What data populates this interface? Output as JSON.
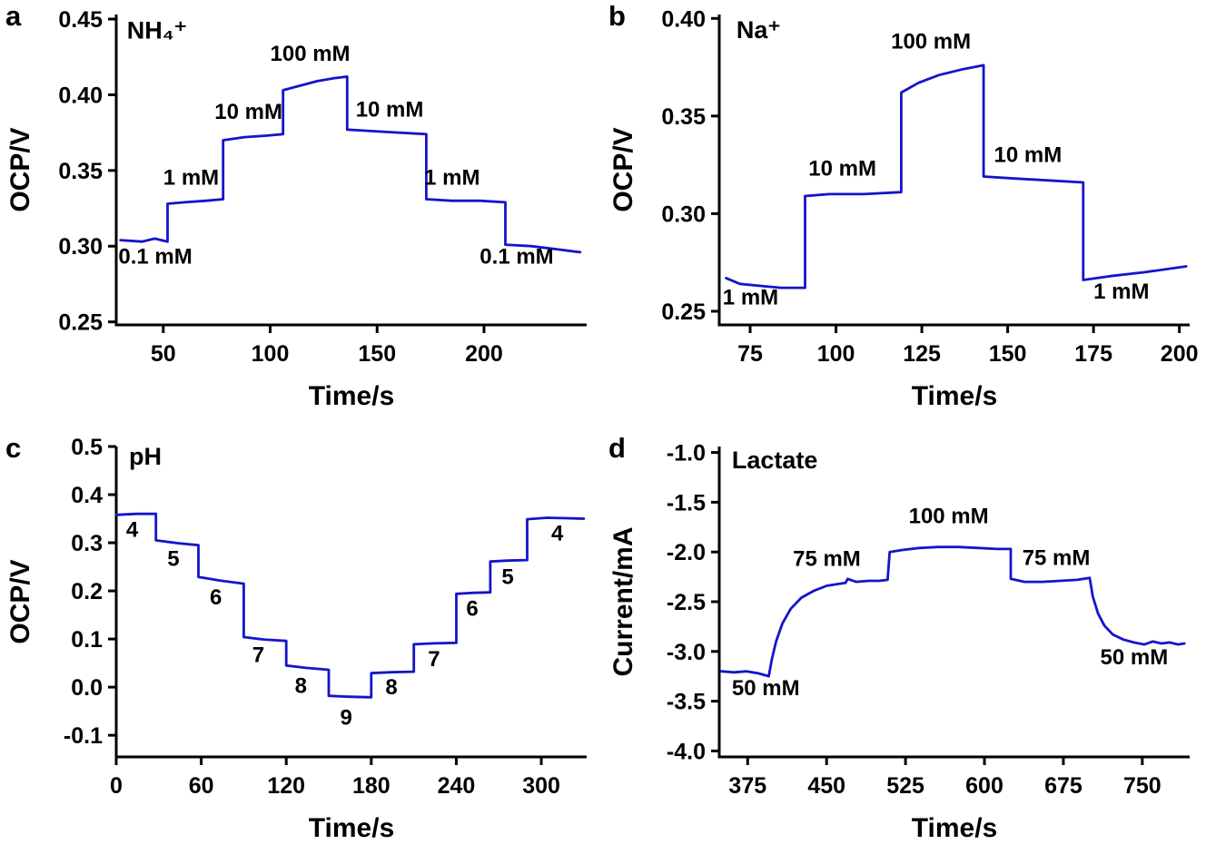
{
  "figure": {
    "background": "#ffffff",
    "line_color": "#1414cc",
    "panels": [
      {
        "letter": "a"
      },
      {
        "letter": "b"
      },
      {
        "letter": "c"
      },
      {
        "letter": "d"
      }
    ]
  },
  "chart_data": [
    {
      "panel": "a",
      "type": "line",
      "analyte": "NH₄⁺",
      "xlabel": "Time/s",
      "ylabel": "OCP/V",
      "xlim": [
        28,
        248
      ],
      "ylim": [
        0.248,
        0.453
      ],
      "line_color": "#1414cc",
      "xticks": [
        {
          "v": 50,
          "label": "50"
        },
        {
          "v": 100,
          "label": "100"
        },
        {
          "v": 150,
          "label": "150"
        },
        {
          "v": 200,
          "label": "200"
        }
      ],
      "yticks": [
        {
          "v": 0.25,
          "label": "0.25"
        },
        {
          "v": 0.3,
          "label": "0.30"
        },
        {
          "v": 0.35,
          "label": "0.35"
        },
        {
          "v": 0.4,
          "label": "0.40"
        },
        {
          "v": 0.45,
          "label": "0.45"
        }
      ],
      "trace": [
        [
          30,
          0.304
        ],
        [
          40,
          0.303
        ],
        [
          46,
          0.305
        ],
        [
          52,
          0.303
        ],
        [
          52,
          0.328
        ],
        [
          60,
          0.329
        ],
        [
          70,
          0.33
        ],
        [
          78,
          0.331
        ],
        [
          78,
          0.37
        ],
        [
          88,
          0.372
        ],
        [
          98,
          0.373
        ],
        [
          106,
          0.374
        ],
        [
          106,
          0.403
        ],
        [
          114,
          0.406
        ],
        [
          122,
          0.409
        ],
        [
          130,
          0.411
        ],
        [
          136,
          0.412
        ],
        [
          136,
          0.377
        ],
        [
          148,
          0.376
        ],
        [
          160,
          0.375
        ],
        [
          173,
          0.374
        ],
        [
          173,
          0.331
        ],
        [
          185,
          0.33
        ],
        [
          198,
          0.33
        ],
        [
          210,
          0.329
        ],
        [
          210,
          0.301
        ],
        [
          222,
          0.3
        ],
        [
          234,
          0.298
        ],
        [
          245,
          0.296
        ]
      ],
      "annotations": [
        {
          "x": 33,
          "y": 0.437,
          "text": "NH₄⁺",
          "cls": "analyte"
        },
        {
          "x": 29,
          "y": 0.2885,
          "text": "0.1 mM"
        },
        {
          "x": 50,
          "y": 0.3405,
          "text": "1 mM"
        },
        {
          "x": 74,
          "y": 0.384,
          "text": "10 mM"
        },
        {
          "x": 100,
          "y": 0.4225,
          "text": "100 mM"
        },
        {
          "x": 140,
          "y": 0.3855,
          "text": "10 mM"
        },
        {
          "x": 172,
          "y": 0.3405,
          "text": "1 mM"
        },
        {
          "x": 198,
          "y": 0.2885,
          "text": "0.1 mM"
        }
      ]
    },
    {
      "panel": "b",
      "type": "line",
      "analyte": "Na⁺",
      "xlabel": "Time/s",
      "ylabel": "OCP/V",
      "xlim": [
        66,
        203
      ],
      "ylim": [
        0.243,
        0.402
      ],
      "line_color": "#1414cc",
      "xticks": [
        {
          "v": 75,
          "label": "75"
        },
        {
          "v": 100,
          "label": "100"
        },
        {
          "v": 125,
          "label": "125"
        },
        {
          "v": 150,
          "label": "150"
        },
        {
          "v": 175,
          "label": "175"
        },
        {
          "v": 200,
          "label": "200"
        }
      ],
      "yticks": [
        {
          "v": 0.25,
          "label": "0.25"
        },
        {
          "v": 0.3,
          "label": "0.30"
        },
        {
          "v": 0.35,
          "label": "0.35"
        },
        {
          "v": 0.4,
          "label": "0.40"
        }
      ],
      "trace": [
        [
          68,
          0.267
        ],
        [
          72,
          0.264
        ],
        [
          78,
          0.263
        ],
        [
          84,
          0.262
        ],
        [
          91,
          0.262
        ],
        [
          91,
          0.309
        ],
        [
          98,
          0.31
        ],
        [
          108,
          0.31
        ],
        [
          119,
          0.311
        ],
        [
          119,
          0.362
        ],
        [
          124,
          0.367
        ],
        [
          130,
          0.371
        ],
        [
          137,
          0.374
        ],
        [
          143,
          0.376
        ],
        [
          143,
          0.319
        ],
        [
          152,
          0.318
        ],
        [
          162,
          0.317
        ],
        [
          172,
          0.316
        ],
        [
          172,
          0.266
        ],
        [
          180,
          0.268
        ],
        [
          190,
          0.27
        ],
        [
          202,
          0.273
        ]
      ],
      "annotations": [
        {
          "x": 71,
          "y": 0.39,
          "text": "Na⁺",
          "cls": "analyte"
        },
        {
          "x": 67,
          "y": 0.2535,
          "text": "1 mM"
        },
        {
          "x": 92,
          "y": 0.3195,
          "text": "10 mM"
        },
        {
          "x": 116,
          "y": 0.3845,
          "text": "100 mM"
        },
        {
          "x": 146,
          "y": 0.3265,
          "text": "10 mM"
        },
        {
          "x": 175,
          "y": 0.2565,
          "text": "1 mM"
        }
      ]
    },
    {
      "panel": "c",
      "type": "line",
      "analyte": "pH",
      "xlabel": "Time/s",
      "ylabel": "OCP/V",
      "xlim": [
        0,
        332
      ],
      "ylim": [
        -0.145,
        0.5
      ],
      "line_color": "#1414cc",
      "xticks": [
        {
          "v": 0,
          "label": "0"
        },
        {
          "v": 60,
          "label": "60"
        },
        {
          "v": 120,
          "label": "120"
        },
        {
          "v": 180,
          "label": "180"
        },
        {
          "v": 240,
          "label": "240"
        },
        {
          "v": 300,
          "label": "300"
        }
      ],
      "yticks": [
        {
          "v": -0.1,
          "label": "-0.1"
        },
        {
          "v": 0.0,
          "label": "0.0"
        },
        {
          "v": 0.1,
          "label": "0.1"
        },
        {
          "v": 0.2,
          "label": "0.2"
        },
        {
          "v": 0.3,
          "label": "0.3"
        },
        {
          "v": 0.4,
          "label": "0.4"
        },
        {
          "v": 0.5,
          "label": "0.5"
        }
      ],
      "trace": [
        [
          0,
          0.358
        ],
        [
          14,
          0.36
        ],
        [
          28,
          0.36
        ],
        [
          28,
          0.305
        ],
        [
          44,
          0.299
        ],
        [
          58,
          0.295
        ],
        [
          58,
          0.229
        ],
        [
          74,
          0.221
        ],
        [
          90,
          0.215
        ],
        [
          90,
          0.104
        ],
        [
          104,
          0.099
        ],
        [
          120,
          0.096
        ],
        [
          120,
          0.045
        ],
        [
          134,
          0.04
        ],
        [
          150,
          0.036
        ],
        [
          150,
          -0.018
        ],
        [
          164,
          -0.02
        ],
        [
          180,
          -0.021
        ],
        [
          180,
          0.029
        ],
        [
          194,
          0.031
        ],
        [
          210,
          0.032
        ],
        [
          210,
          0.089
        ],
        [
          224,
          0.091
        ],
        [
          240,
          0.092
        ],
        [
          240,
          0.194
        ],
        [
          252,
          0.196
        ],
        [
          264,
          0.197
        ],
        [
          264,
          0.261
        ],
        [
          276,
          0.263
        ],
        [
          290,
          0.264
        ],
        [
          290,
          0.349
        ],
        [
          304,
          0.352
        ],
        [
          318,
          0.351
        ],
        [
          330,
          0.35
        ]
      ],
      "annotations": [
        {
          "x": 9,
          "y": 0.462,
          "text": "pH",
          "cls": "analyte"
        },
        {
          "x": 7,
          "y": 0.312,
          "text": "4"
        },
        {
          "x": 36,
          "y": 0.252,
          "text": "5"
        },
        {
          "x": 66,
          "y": 0.172,
          "text": "6"
        },
        {
          "x": 96,
          "y": 0.052,
          "text": "7"
        },
        {
          "x": 126,
          "y": -0.012,
          "text": "8"
        },
        {
          "x": 158,
          "y": -0.078,
          "text": "9"
        },
        {
          "x": 190,
          "y": -0.015,
          "text": "8"
        },
        {
          "x": 220,
          "y": 0.044,
          "text": "7"
        },
        {
          "x": 247,
          "y": 0.148,
          "text": "6"
        },
        {
          "x": 272,
          "y": 0.214,
          "text": "5"
        },
        {
          "x": 307,
          "y": 0.305,
          "text": "4"
        }
      ]
    },
    {
      "panel": "d",
      "type": "line",
      "analyte": "Lactate",
      "xlabel": "Time/s",
      "ylabel": "Current/mA",
      "xlim": [
        348,
        795
      ],
      "ylim": [
        -4.06,
        -0.94
      ],
      "line_color": "#1414cc",
      "xticks": [
        {
          "v": 375,
          "label": "375"
        },
        {
          "v": 450,
          "label": "450"
        },
        {
          "v": 525,
          "label": "525"
        },
        {
          "v": 600,
          "label": "600"
        },
        {
          "v": 675,
          "label": "675"
        },
        {
          "v": 750,
          "label": "750"
        }
      ],
      "yticks": [
        {
          "v": -1.0,
          "label": "-1.0"
        },
        {
          "v": -1.5,
          "label": "-1.5"
        },
        {
          "v": -2.0,
          "label": "-2.0"
        },
        {
          "v": -2.5,
          "label": "-2.5"
        },
        {
          "v": -3.0,
          "label": "-3.0"
        },
        {
          "v": -3.5,
          "label": "-3.5"
        },
        {
          "v": -4.0,
          "label": "-4.0"
        }
      ],
      "trace": [
        [
          350,
          -3.2
        ],
        [
          362,
          -3.21
        ],
        [
          374,
          -3.2
        ],
        [
          385,
          -3.22
        ],
        [
          392,
          -3.24
        ],
        [
          395,
          -3.25
        ],
        [
          398,
          -3.08
        ],
        [
          402,
          -2.9
        ],
        [
          408,
          -2.72
        ],
        [
          416,
          -2.57
        ],
        [
          426,
          -2.46
        ],
        [
          438,
          -2.39
        ],
        [
          450,
          -2.34
        ],
        [
          462,
          -2.32
        ],
        [
          468,
          -2.31
        ],
        [
          470,
          -2.27
        ],
        [
          478,
          -2.3
        ],
        [
          490,
          -2.29
        ],
        [
          500,
          -2.29
        ],
        [
          508,
          -2.28
        ],
        [
          510,
          -2.0
        ],
        [
          522,
          -1.98
        ],
        [
          538,
          -1.96
        ],
        [
          556,
          -1.95
        ],
        [
          575,
          -1.95
        ],
        [
          595,
          -1.96
        ],
        [
          612,
          -1.97
        ],
        [
          625,
          -1.97
        ],
        [
          625,
          -2.27
        ],
        [
          638,
          -2.3
        ],
        [
          655,
          -2.3
        ],
        [
          672,
          -2.29
        ],
        [
          688,
          -2.28
        ],
        [
          700,
          -2.26
        ],
        [
          703,
          -2.45
        ],
        [
          708,
          -2.62
        ],
        [
          714,
          -2.74
        ],
        [
          722,
          -2.83
        ],
        [
          732,
          -2.88
        ],
        [
          742,
          -2.91
        ],
        [
          752,
          -2.93
        ],
        [
          760,
          -2.9
        ],
        [
          768,
          -2.92
        ],
        [
          776,
          -2.91
        ],
        [
          784,
          -2.93
        ],
        [
          790,
          -2.92
        ]
      ],
      "annotations": [
        {
          "x": 360,
          "y": -1.16,
          "text": "Lactate",
          "cls": "analyte"
        },
        {
          "x": 360,
          "y": -3.44,
          "text": "50 mM"
        },
        {
          "x": 418,
          "y": -2.14,
          "text": "75 mM"
        },
        {
          "x": 528,
          "y": -1.71,
          "text": "100 mM"
        },
        {
          "x": 636,
          "y": -2.13,
          "text": "75 mM"
        },
        {
          "x": 710,
          "y": -3.13,
          "text": "50 mM"
        }
      ]
    }
  ]
}
